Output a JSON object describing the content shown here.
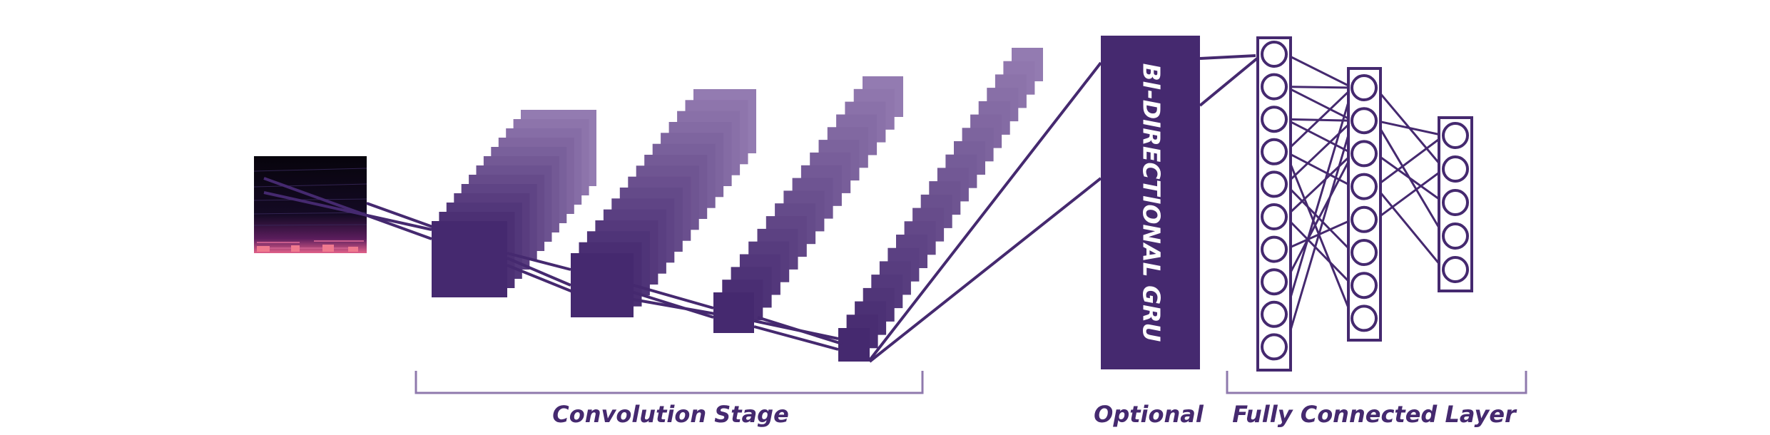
{
  "colors": {
    "primary": "#45296f",
    "light": "#9c84b8",
    "bracket": "#8f79ad",
    "text": "#45296f",
    "white": "#ffffff"
  },
  "labels": {
    "gru": "BI-DIRECTIONAL GRU",
    "convolution_stage": "Convolution Stage",
    "optional": "Optional",
    "fully_connected": "Fully Connected Layer"
  },
  "fc_layers": {
    "layer1_nodes": 10,
    "layer2_nodes": 8,
    "layer3_nodes": 5
  }
}
